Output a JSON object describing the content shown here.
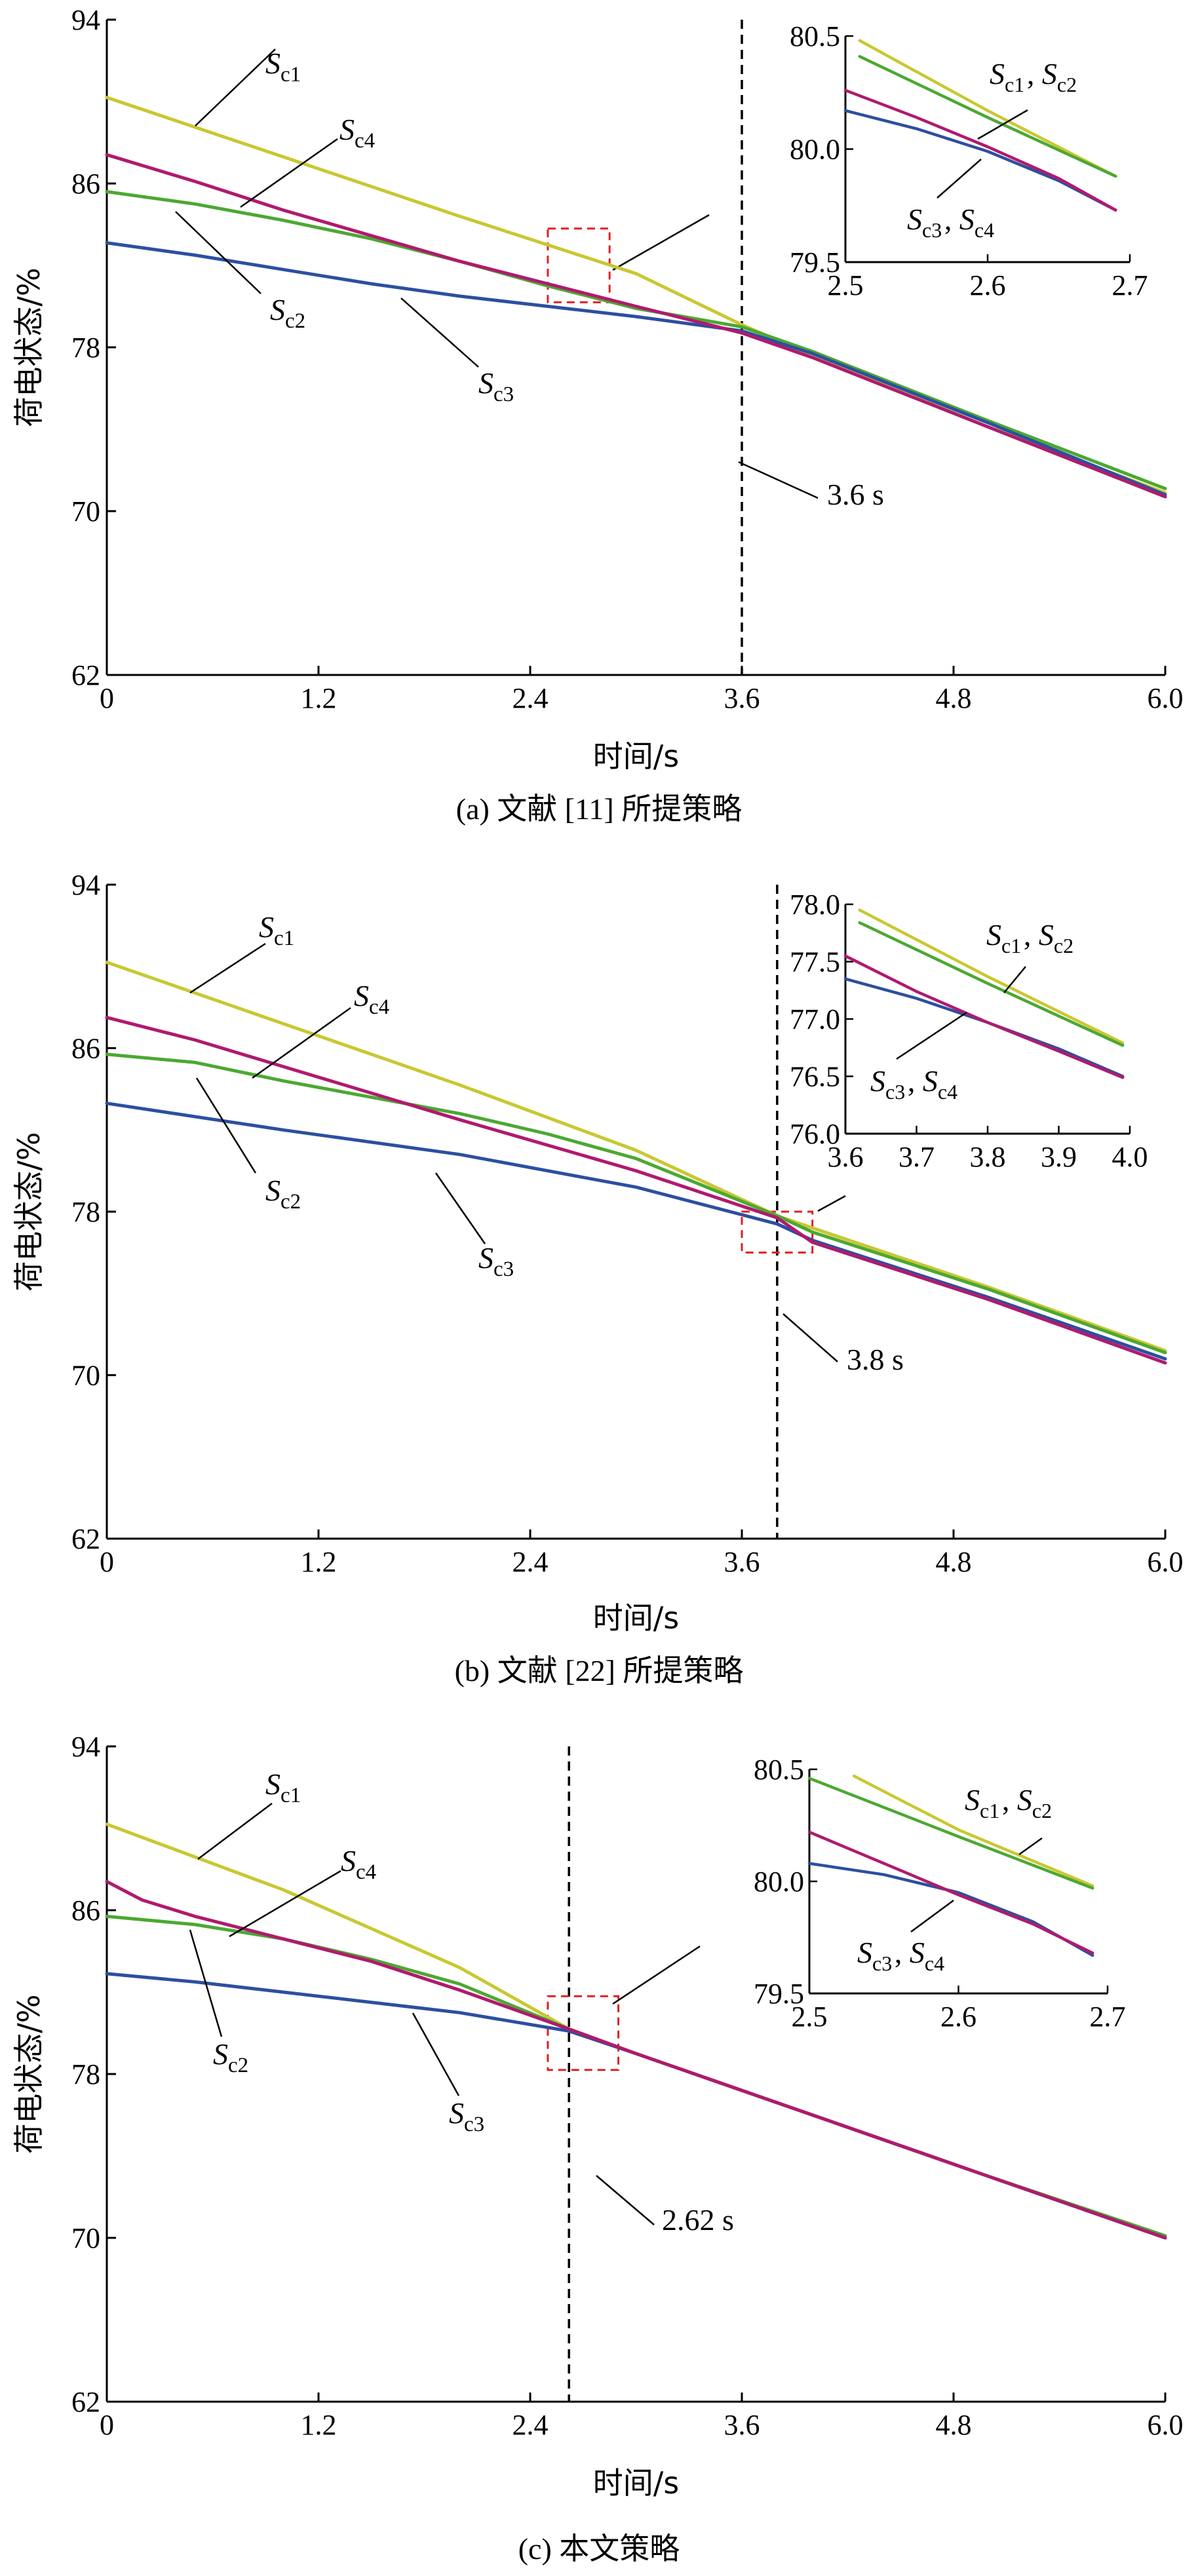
{
  "colors": {
    "S_c1": "#c8c832",
    "S_c2": "#4ca832",
    "S_c3": "#2c4fa0",
    "S_c4": "#b01a6e",
    "vline": "#000000",
    "zoombox": "#e02020"
  },
  "series_labels": {
    "c1": "c1",
    "c2": "c2",
    "c3": "c3",
    "c4": "c4",
    "S": "S",
    "comma": ", "
  },
  "chart_data": [
    {
      "type": "line",
      "caption": "(a)  文献 [11] 所提策略",
      "xlabel": "时间/s",
      "ylabel": "荷电状态/%",
      "xlim": [
        0,
        6.0
      ],
      "ylim": [
        62,
        94
      ],
      "xticks": [
        "0",
        "1.2",
        "2.4",
        "3.6",
        "4.8",
        "6.0"
      ],
      "yticks": [
        "62",
        "70",
        "78",
        "86",
        "94"
      ],
      "vline": {
        "x": 3.6,
        "label": "3.6 s"
      },
      "zoom_box": {
        "x": [
          2.5,
          2.85
        ],
        "y": [
          80.2,
          83.8
        ]
      },
      "series": [
        {
          "name": "S_c1",
          "x": [
            0,
            1,
            2,
            3,
            3.6,
            4,
            5,
            6
          ],
          "y": [
            90.2,
            87.3,
            84.4,
            81.6,
            79.1,
            77.6,
            74.1,
            70.9
          ]
        },
        {
          "name": "S_c2",
          "x": [
            0,
            0.5,
            1,
            1.5,
            2,
            2.5,
            3,
            3.6,
            4,
            5,
            6
          ],
          "y": [
            85.6,
            85.0,
            84.2,
            83.3,
            82.2,
            81.0,
            79.9,
            79.0,
            77.8,
            74.4,
            71.1
          ]
        },
        {
          "name": "S_c3",
          "x": [
            0,
            0.5,
            1,
            1.5,
            2,
            2.5,
            3,
            3.6,
            4,
            5,
            6
          ],
          "y": [
            83.1,
            82.5,
            81.8,
            81.1,
            80.5,
            80.0,
            79.5,
            78.8,
            77.7,
            74.3,
            70.8
          ]
        },
        {
          "name": "S_c4",
          "x": [
            0,
            0.5,
            1,
            2,
            3,
            3.6,
            4,
            5,
            6
          ],
          "y": [
            87.4,
            86.1,
            84.7,
            82.2,
            80.0,
            78.7,
            77.5,
            74.1,
            70.7
          ]
        }
      ],
      "inset": {
        "xlim": [
          2.5,
          2.7
        ],
        "ylim": [
          79.5,
          80.5
        ],
        "xticks": [
          "2.5",
          "2.6",
          "2.7"
        ],
        "yticks": [
          "79.5",
          "80.0",
          "80.5"
        ],
        "label_top": [
          "c1",
          "c2"
        ],
        "label_bottom": [
          "c3",
          "c4"
        ],
        "series": [
          {
            "name": "S_c1",
            "x": [
              2.51,
              2.6,
              2.69
            ],
            "y": [
              80.48,
              80.17,
              79.88
            ]
          },
          {
            "name": "S_c2",
            "x": [
              2.51,
              2.6,
              2.69
            ],
            "y": [
              80.41,
              80.14,
              79.88
            ]
          },
          {
            "name": "S_c3",
            "x": [
              2.5,
              2.55,
              2.6,
              2.65,
              2.69
            ],
            "y": [
              80.17,
              80.09,
              79.99,
              79.86,
              79.73
            ]
          },
          {
            "name": "S_c4",
            "x": [
              2.5,
              2.55,
              2.6,
              2.65,
              2.69
            ],
            "y": [
              80.26,
              80.14,
              80.01,
              79.87,
              79.73
            ]
          }
        ]
      }
    },
    {
      "type": "line",
      "caption": "(b)  文献 [22] 所提策略",
      "xlabel": "时间/s",
      "ylabel": "荷电状态/%",
      "xlim": [
        0,
        6.0
      ],
      "ylim": [
        62,
        94
      ],
      "xticks": [
        "0",
        "1.2",
        "2.4",
        "3.6",
        "4.8",
        "6.0"
      ],
      "yticks": [
        "62",
        "70",
        "78",
        "86",
        "94"
      ],
      "vline": {
        "x": 3.8,
        "label": "3.8 s"
      },
      "zoom_box": {
        "x": [
          3.6,
          4.0
        ],
        "y": [
          76.0,
          78.0
        ]
      },
      "series": [
        {
          "name": "S_c1",
          "x": [
            0,
            1,
            2,
            3,
            3.8,
            4,
            5,
            6
          ],
          "y": [
            90.2,
            87.2,
            84.2,
            81.0,
            77.8,
            77.2,
            74.3,
            71.2
          ]
        },
        {
          "name": "S_c2",
          "x": [
            0,
            0.5,
            1,
            1.5,
            2,
            2.5,
            3,
            3.8,
            4,
            5,
            6
          ],
          "y": [
            85.7,
            85.3,
            84.4,
            83.6,
            82.8,
            81.8,
            80.6,
            77.8,
            77.0,
            74.2,
            71.1
          ]
        },
        {
          "name": "S_c3",
          "x": [
            0,
            1,
            2,
            3,
            3.8,
            4,
            5,
            6
          ],
          "y": [
            83.3,
            82.0,
            80.8,
            79.2,
            77.4,
            76.6,
            73.8,
            70.8
          ]
        },
        {
          "name": "S_c4",
          "x": [
            0,
            0.5,
            1,
            2,
            3,
            3.8,
            4,
            5,
            6
          ],
          "y": [
            87.5,
            86.4,
            85.1,
            82.5,
            80.0,
            77.7,
            76.5,
            73.7,
            70.6
          ]
        }
      ],
      "inset": {
        "xlim": [
          3.6,
          4.0
        ],
        "ylim": [
          76.0,
          78.0
        ],
        "xticks": [
          "3.6",
          "3.7",
          "3.8",
          "3.9",
          "4.0"
        ],
        "yticks": [
          "76.0",
          "76.5",
          "77.0",
          "77.5",
          "78.0"
        ],
        "label_top": [
          "c1",
          "c2"
        ],
        "label_bottom": [
          "c3",
          "c4"
        ],
        "series": [
          {
            "name": "S_c1",
            "x": [
              3.62,
              3.8,
              3.99
            ],
            "y": [
              77.95,
              77.37,
              76.79
            ]
          },
          {
            "name": "S_c2",
            "x": [
              3.62,
              3.8,
              3.99
            ],
            "y": [
              77.84,
              77.31,
              76.77
            ]
          },
          {
            "name": "S_c3",
            "x": [
              3.6,
              3.7,
              3.8,
              3.9,
              3.99
            ],
            "y": [
              77.35,
              77.18,
              76.97,
              76.74,
              76.5
            ]
          },
          {
            "name": "S_c4",
            "x": [
              3.6,
              3.7,
              3.8,
              3.9,
              3.99
            ],
            "y": [
              77.55,
              77.24,
              76.97,
              76.72,
              76.49
            ]
          }
        ]
      }
    },
    {
      "type": "line",
      "caption": "(c)  本文策略",
      "xlabel": "时间/s",
      "ylabel": "荷电状态/%",
      "xlim": [
        0,
        6.0
      ],
      "ylim": [
        62,
        94
      ],
      "xticks": [
        "0",
        "1.2",
        "2.4",
        "3.6",
        "4.8",
        "6.0"
      ],
      "yticks": [
        "62",
        "70",
        "78",
        "86",
        "94"
      ],
      "vline": {
        "x": 2.62,
        "label": "2.62 s"
      },
      "zoom_box": {
        "x": [
          2.5,
          2.9
        ],
        "y": [
          78.2,
          81.8
        ]
      },
      "series": [
        {
          "name": "S_c1",
          "x": [
            0,
            1,
            2,
            2.62,
            3,
            4,
            5,
            6
          ],
          "y": [
            90.2,
            87.0,
            83.2,
            80.2,
            79.0,
            76.0,
            73.0,
            70.1
          ]
        },
        {
          "name": "S_c2",
          "x": [
            0,
            0.5,
            1,
            1.5,
            2,
            2.62,
            3,
            4,
            5,
            6
          ],
          "y": [
            85.7,
            85.3,
            84.6,
            83.6,
            82.4,
            80.2,
            79.0,
            76.0,
            73.0,
            70.1
          ]
        },
        {
          "name": "S_c3",
          "x": [
            0,
            0.5,
            1,
            1.5,
            2,
            2.62,
            3,
            4,
            5,
            6
          ],
          "y": [
            82.9,
            82.5,
            82.0,
            81.5,
            81.0,
            80.1,
            79.0,
            76.0,
            73.0,
            70.0
          ]
        },
        {
          "name": "S_c4",
          "x": [
            0,
            0.2,
            0.5,
            1,
            1.5,
            2,
            2.62,
            3,
            4,
            5,
            6
          ],
          "y": [
            87.4,
            86.5,
            85.7,
            84.6,
            83.5,
            82.1,
            80.2,
            79.0,
            76.0,
            73.0,
            70.0
          ]
        }
      ],
      "inset": {
        "xlim": [
          2.5,
          2.7
        ],
        "ylim": [
          79.5,
          80.5
        ],
        "xticks": [
          "2.5",
          "2.6",
          "2.7"
        ],
        "yticks": [
          "79.5",
          "80.0",
          "80.5"
        ],
        "label_top": [
          "c1",
          "c2"
        ],
        "label_bottom": [
          "c3",
          "c4"
        ],
        "series": [
          {
            "name": "S_c1",
            "x": [
              2.53,
              2.6,
              2.69
            ],
            "y": [
              80.47,
              80.23,
              79.98
            ]
          },
          {
            "name": "S_c2",
            "x": [
              2.5,
              2.6,
              2.69
            ],
            "y": [
              80.46,
              80.2,
              79.97
            ]
          },
          {
            "name": "S_c3",
            "x": [
              2.5,
              2.55,
              2.6,
              2.65,
              2.69
            ],
            "y": [
              80.08,
              80.03,
              79.95,
              79.82,
              79.67
            ]
          },
          {
            "name": "S_c4",
            "x": [
              2.5,
              2.55,
              2.6,
              2.65,
              2.69
            ],
            "y": [
              80.22,
              80.08,
              79.94,
              79.81,
              79.68
            ]
          }
        ]
      }
    }
  ]
}
